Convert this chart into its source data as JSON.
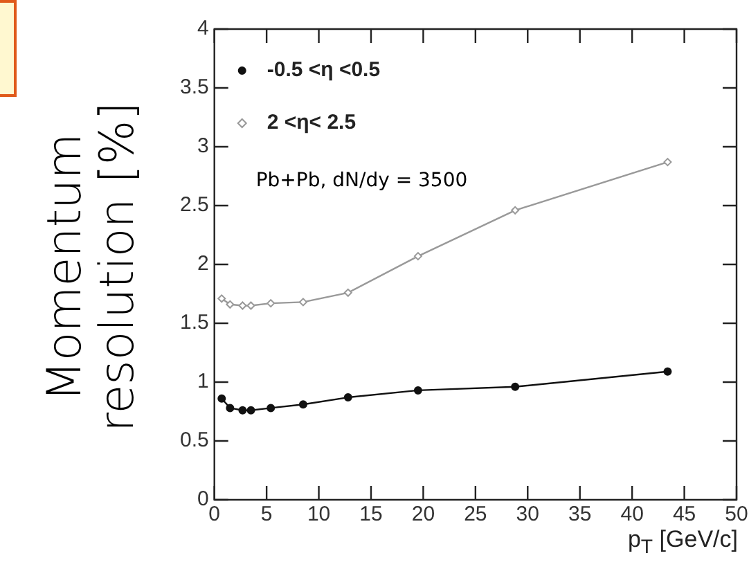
{
  "chart_data": {
    "type": "line",
    "ylabel": "Momentum resolution [%]",
    "xlabel": "p$_{T}$ [GeV/c]",
    "annotations": [
      "Pb+Pb, dN/dy = 3500"
    ],
    "xlim": [
      0,
      50
    ],
    "xticks": [
      0,
      5,
      10,
      15,
      20,
      25,
      30,
      35,
      40,
      45,
      50
    ],
    "ylim": [
      0,
      4
    ],
    "yticks": [
      0,
      0.5,
      1,
      1.5,
      2,
      2.5,
      3,
      3.5,
      4
    ],
    "grid": false,
    "legend": "top left",
    "marker": "circle",
    "line_style": "solid",
    "series": [
      {
        "name": "-0.5 <η <0.5",
        "color": "#111111",
        "x": [
          0.7,
          1.5,
          2.7,
          3.5,
          5.4,
          8.5,
          12.8,
          19.5,
          28.8,
          43.4
        ],
        "values": [
          0.86,
          0.78,
          0.76,
          0.76,
          0.78,
          0.81,
          0.87,
          0.93,
          0.96,
          1.09
        ]
      },
      {
        "name": "2 <η< 2.5",
        "color": "#999999",
        "marker": "diamond",
        "x": [
          0.7,
          1.5,
          2.7,
          3.5,
          5.4,
          8.5,
          12.8,
          19.5,
          28.8,
          43.4
        ],
        "values": [
          1.71,
          1.66,
          1.65,
          1.65,
          1.67,
          1.68,
          1.76,
          2.07,
          2.46,
          2.87
        ]
      }
    ]
  }
}
